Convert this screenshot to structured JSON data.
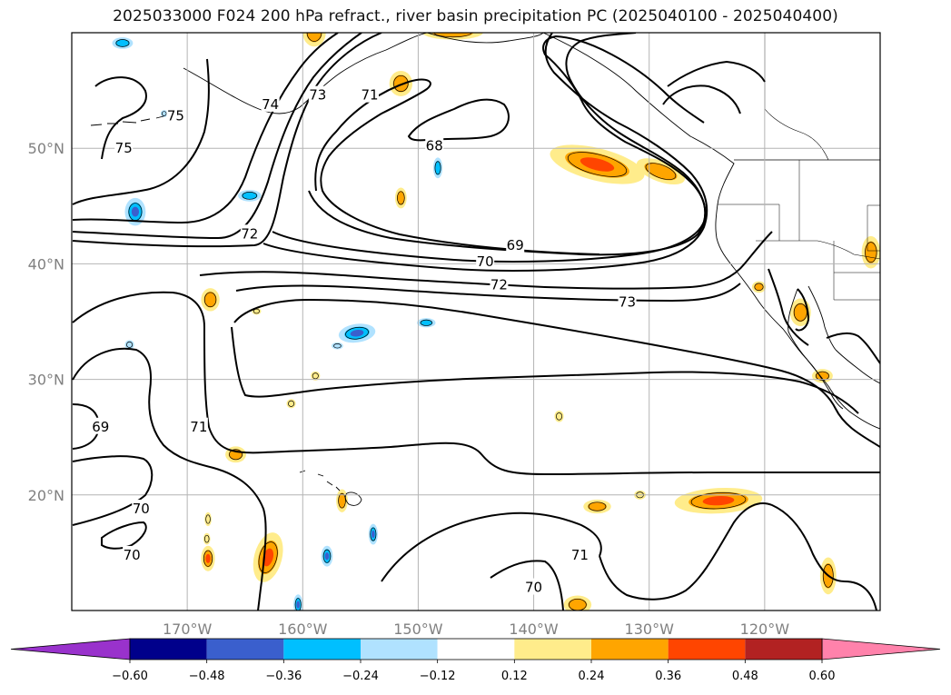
{
  "title": "2025033000 F024 200 hPa refract., river basin precipitation PC (2025040100 - 2025040400)",
  "map": {
    "lon_range": [
      -180,
      -110
    ],
    "lat_range": [
      10,
      60
    ],
    "lon_ticks": [
      {
        "lon": -170,
        "label": "170°W"
      },
      {
        "lon": -160,
        "label": "160°W"
      },
      {
        "lon": -150,
        "label": "150°W"
      },
      {
        "lon": -140,
        "label": "140°W"
      },
      {
        "lon": -130,
        "label": "130°W"
      },
      {
        "lon": -120,
        "label": "120°W"
      }
    ],
    "lat_ticks": [
      {
        "lat": 50,
        "label": "50°N"
      },
      {
        "lat": 40,
        "label": "40°N"
      },
      {
        "lat": 30,
        "label": "30°N"
      },
      {
        "lat": 20,
        "label": "20°N"
      }
    ],
    "gridlines": true,
    "contour_labels": [
      {
        "text": "75",
        "lon": -171.0,
        "lat": 52.8
      },
      {
        "text": "75",
        "lon": -175.5,
        "lat": 50.0
      },
      {
        "text": "73",
        "lon": -158.7,
        "lat": 54.6
      },
      {
        "text": "74",
        "lon": -162.8,
        "lat": 53.8
      },
      {
        "text": "71",
        "lon": -154.2,
        "lat": 54.6
      },
      {
        "text": "72",
        "lon": -164.6,
        "lat": 42.6
      },
      {
        "text": "68",
        "lon": -148.6,
        "lat": 50.2
      },
      {
        "text": "69",
        "lon": -141.6,
        "lat": 41.6
      },
      {
        "text": "70",
        "lon": -144.2,
        "lat": 40.2
      },
      {
        "text": "72",
        "lon": -143.0,
        "lat": 38.2
      },
      {
        "text": "73",
        "lon": -131.9,
        "lat": 36.7
      },
      {
        "text": "71",
        "lon": -169.0,
        "lat": 25.9
      },
      {
        "text": "69",
        "lon": -177.5,
        "lat": 25.9
      },
      {
        "text": "70",
        "lon": -174.0,
        "lat": 18.8
      },
      {
        "text": "70",
        "lon": -174.8,
        "lat": 14.8
      },
      {
        "text": "70",
        "lon": -140.0,
        "lat": 12.0
      },
      {
        "text": "71",
        "lon": -136.0,
        "lat": 14.8
      }
    ],
    "precip_pc_areas": [
      {
        "lon": -134.5,
        "lat": 48.6,
        "rlon": 4.2,
        "rlat": 1.4,
        "rot": 14,
        "level": 0.36
      },
      {
        "lon": -124.0,
        "lat": 19.5,
        "rlon": 3.8,
        "rlat": 1.1,
        "rot": -3,
        "level": 0.36
      },
      {
        "lon": -163.0,
        "lat": 14.6,
        "rlon": 1.2,
        "rlat": 2.2,
        "rot": 15,
        "level": 0.36
      },
      {
        "lon": -168.2,
        "lat": 14.5,
        "rlon": 0.6,
        "rlat": 1.1,
        "rot": 0,
        "level": 0.36
      },
      {
        "lon": -159.0,
        "lat": 60.0,
        "rlon": 1.0,
        "rlat": 1.2,
        "rot": 0,
        "level": 0.24
      },
      {
        "lon": -147.0,
        "lat": 60.0,
        "rlon": 2.6,
        "rlat": 0.6,
        "rot": 0,
        "level": 0.24
      },
      {
        "lon": -151.5,
        "lat": 55.6,
        "rlon": 1.0,
        "rlat": 1.1,
        "rot": 0,
        "level": 0.24
      },
      {
        "lon": -151.5,
        "lat": 45.7,
        "rlon": 0.5,
        "rlat": 0.9,
        "rot": 0,
        "level": 0.24
      },
      {
        "lon": -168.0,
        "lat": 36.9,
        "rlon": 0.8,
        "rlat": 1.0,
        "rot": 0,
        "level": 0.24
      },
      {
        "lon": -165.8,
        "lat": 23.5,
        "rlon": 0.9,
        "rlat": 0.7,
        "rot": 0,
        "level": 0.24
      },
      {
        "lon": -156.6,
        "lat": 19.5,
        "rlon": 0.5,
        "rlat": 1.0,
        "rot": 0,
        "level": 0.24
      },
      {
        "lon": -129.0,
        "lat": 48.0,
        "rlon": 2.2,
        "rlat": 0.9,
        "rot": 20,
        "level": 0.24
      },
      {
        "lon": -134.5,
        "lat": 19.0,
        "rlon": 1.2,
        "rlat": 0.6,
        "rot": 0,
        "level": 0.24
      },
      {
        "lon": -116.9,
        "lat": 35.8,
        "rlon": 0.9,
        "rlat": 1.2,
        "rot": 0,
        "level": 0.24
      },
      {
        "lon": -115.0,
        "lat": 30.3,
        "rlon": 0.9,
        "rlat": 0.6,
        "rot": 0,
        "level": 0.24
      },
      {
        "lon": -110.8,
        "lat": 41.0,
        "rlon": 0.8,
        "rlat": 1.4,
        "rot": 0,
        "level": 0.24
      },
      {
        "lon": -114.5,
        "lat": 13.0,
        "rlon": 0.7,
        "rlat": 1.6,
        "rot": 0,
        "level": 0.24
      },
      {
        "lon": -136.2,
        "lat": 10.5,
        "rlon": 1.2,
        "rlat": 0.8,
        "rot": 0,
        "level": 0.24
      },
      {
        "lon": -120.5,
        "lat": 38.0,
        "rlon": 0.6,
        "rlat": 0.5,
        "rot": 0,
        "level": 0.24
      },
      {
        "lon": -158.9,
        "lat": 30.3,
        "rlon": 0.4,
        "rlat": 0.4,
        "rot": 0,
        "level": 0.12
      },
      {
        "lon": -161.0,
        "lat": 27.9,
        "rlon": 0.4,
        "rlat": 0.4,
        "rot": 0,
        "level": 0.12
      },
      {
        "lon": -164.0,
        "lat": 35.9,
        "rlon": 0.4,
        "rlat": 0.3,
        "rot": 0,
        "level": 0.12
      },
      {
        "lon": -168.2,
        "lat": 17.9,
        "rlon": 0.3,
        "rlat": 0.6,
        "rot": 0,
        "level": 0.12
      },
      {
        "lon": -168.3,
        "lat": 16.2,
        "rlon": 0.3,
        "rlat": 0.5,
        "rot": 0,
        "level": 0.12
      },
      {
        "lon": -130.8,
        "lat": 20.0,
        "rlon": 0.5,
        "rlat": 0.4,
        "rot": 0,
        "level": 0.12
      },
      {
        "lon": -137.8,
        "lat": 26.8,
        "rlon": 0.4,
        "rlat": 0.5,
        "rot": 0,
        "level": 0.12
      },
      {
        "lon": -175.6,
        "lat": 59.1,
        "rlon": 0.9,
        "rlat": 0.5,
        "rot": 0,
        "level": -0.24
      },
      {
        "lon": -174.5,
        "lat": 44.5,
        "rlon": 0.9,
        "rlat": 1.2,
        "rot": 0,
        "level": -0.36
      },
      {
        "lon": -164.6,
        "lat": 45.9,
        "rlon": 1.0,
        "rlat": 0.5,
        "rot": 0,
        "level": -0.24
      },
      {
        "lon": -148.3,
        "lat": 48.3,
        "rlon": 0.4,
        "rlat": 0.9,
        "rot": 0,
        "level": -0.24
      },
      {
        "lon": -155.3,
        "lat": 34.0,
        "rlon": 1.6,
        "rlat": 0.8,
        "rot": -8,
        "level": -0.36
      },
      {
        "lon": -149.3,
        "lat": 34.9,
        "rlon": 0.8,
        "rlat": 0.4,
        "rot": 0,
        "level": -0.24
      },
      {
        "lon": -157.0,
        "lat": 32.9,
        "rlon": 0.5,
        "rlat": 0.3,
        "rot": 0,
        "level": -0.12
      },
      {
        "lon": -175.0,
        "lat": 33.0,
        "rlon": 0.4,
        "rlat": 0.4,
        "rot": 0,
        "level": -0.12
      },
      {
        "lon": -172.0,
        "lat": 53.0,
        "rlon": 0.3,
        "rlat": 0.3,
        "rot": 0,
        "level": -0.12
      },
      {
        "lon": -157.9,
        "lat": 14.7,
        "rlon": 0.5,
        "rlat": 0.9,
        "rot": 0,
        "level": -0.36
      },
      {
        "lon": -153.9,
        "lat": 16.6,
        "rlon": 0.4,
        "rlat": 0.9,
        "rot": 0,
        "level": -0.36
      },
      {
        "lon": -160.4,
        "lat": 10.5,
        "rlon": 0.4,
        "rlat": 0.9,
        "rot": 0,
        "level": -0.36
      }
    ]
  },
  "colorbar": {
    "tick_labels": [
      "−0.60",
      "−0.48",
      "−0.36",
      "−0.24",
      "−0.12",
      "0.12",
      "0.24",
      "0.36",
      "0.48",
      "0.60"
    ],
    "colors": [
      "#9932cc",
      "#00008b",
      "#3a5fcd",
      "#00bfff",
      "#b0e2ff",
      "#ffffff",
      "#ffec8b",
      "#ffa500",
      "#ff4500",
      "#b22222",
      "#ff82ab"
    ],
    "extend": "both"
  },
  "colors": {
    "contour": "#000000",
    "grid": "#b4b4b4",
    "tick_label": "#808080"
  }
}
